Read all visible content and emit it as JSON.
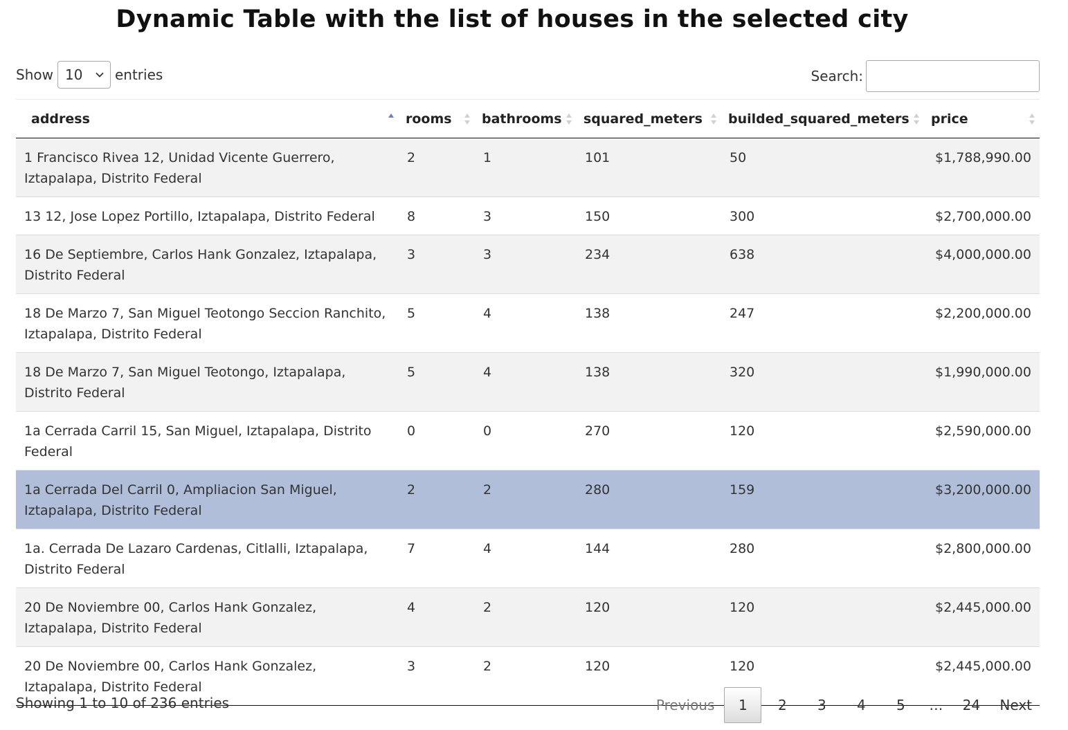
{
  "title": "Dynamic Table with the list of houses in the selected city",
  "controls": {
    "show_label": "Show",
    "entries_label": "entries",
    "length_value": "10",
    "search_label": "Search:",
    "search_value": ""
  },
  "columns": [
    "address",
    "rooms",
    "bathrooms",
    "squared_meters",
    "builded_squared_meters",
    "price"
  ],
  "sort": {
    "column": "address",
    "direction": "ascending"
  },
  "rows": [
    [
      "1 Francisco Rivea 12, Unidad Vicente Guerrero, Iztapalapa, Distrito Federal",
      "2",
      "1",
      "101",
      "50",
      "$1,788,990.00"
    ],
    [
      "13 12, Jose Lopez Portillo, Iztapalapa, Distrito Federal",
      "8",
      "3",
      "150",
      "300",
      "$2,700,000.00"
    ],
    [
      "16 De Septiembre, Carlos Hank Gonzalez, Iztapalapa, Distrito Federal",
      "3",
      "3",
      "234",
      "638",
      "$4,000,000.00"
    ],
    [
      "18 De Marzo 7, San Miguel Teotongo Seccion Ranchito, Iztapalapa, Distrito Federal",
      "5",
      "4",
      "138",
      "247",
      "$2,200,000.00"
    ],
    [
      "18 De Marzo 7, San Miguel Teotongo, Iztapalapa, Distrito Federal",
      "5",
      "4",
      "138",
      "320",
      "$1,990,000.00"
    ],
    [
      "1a Cerrada Carril 15, San Miguel, Iztapalapa, Distrito Federal",
      "0",
      "0",
      "270",
      "120",
      "$2,590,000.00"
    ],
    [
      "1a Cerrada Del Carril 0, Ampliacion San Miguel, Iztapalapa, Distrito Federal",
      "2",
      "2",
      "280",
      "159",
      "$3,200,000.00"
    ],
    [
      "1a. Cerrada De Lazaro Cardenas, Citlalli, Iztapalapa, Distrito Federal",
      "7",
      "4",
      "144",
      "280",
      "$2,800,000.00"
    ],
    [
      "20 De Noviembre 00, Carlos Hank Gonzalez, Iztapalapa, Distrito Federal",
      "4",
      "2",
      "120",
      "120",
      "$2,445,000.00"
    ],
    [
      "20 De Noviembre 00, Carlos Hank Gonzalez, Iztapalapa, Distrito Federal",
      "3",
      "2",
      "120",
      "120",
      "$2,445,000.00"
    ]
  ],
  "selected_row": 6,
  "colors": {
    "odd_row": "#f2f2f2",
    "selected_row": "#b0bed9",
    "sort_active": "#6c7ec2",
    "sort_inactive": "#d0d0d0"
  },
  "info": "Showing 1 to 10 of 236 entries",
  "pagination": {
    "previous": "Previous",
    "pages": [
      "1",
      "2",
      "3",
      "4",
      "5",
      "…",
      "24"
    ],
    "current": "1",
    "next": "Next"
  }
}
